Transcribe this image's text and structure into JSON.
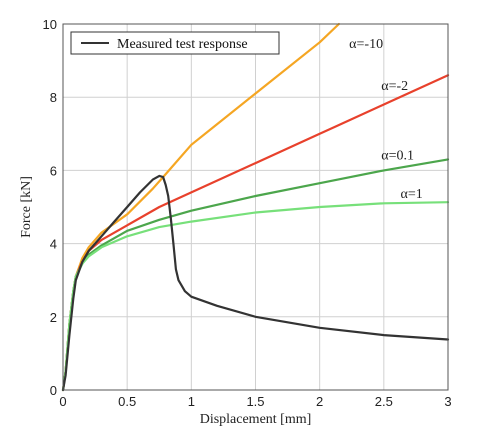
{
  "chart_data": {
    "type": "line",
    "title": "",
    "xlabel": "Displacement  [mm]",
    "ylabel": "Force [kN]",
    "xlim": [
      0,
      3
    ],
    "ylim": [
      0,
      10
    ],
    "x_ticks": [
      0,
      0.5,
      1,
      1.5,
      2,
      2.5,
      3
    ],
    "x_tick_labels": [
      "0",
      "0.5",
      "1",
      "1.5",
      "2",
      "2.5",
      "3"
    ],
    "y_ticks": [
      0,
      2,
      4,
      6,
      8,
      10
    ],
    "y_tick_labels": [
      "0",
      "2",
      "4",
      "6",
      "8",
      "10"
    ],
    "grid": true,
    "legend_position": "top-left",
    "series": [
      {
        "name": "Measured test response",
        "in_legend": true,
        "color": "#333333",
        "points": [
          [
            0,
            0
          ],
          [
            0.02,
            0.4
          ],
          [
            0.05,
            1.5
          ],
          [
            0.08,
            2.5
          ],
          [
            0.1,
            3.0
          ],
          [
            0.15,
            3.5
          ],
          [
            0.2,
            3.8
          ],
          [
            0.3,
            4.2
          ],
          [
            0.4,
            4.6
          ],
          [
            0.5,
            5.0
          ],
          [
            0.6,
            5.4
          ],
          [
            0.7,
            5.75
          ],
          [
            0.75,
            5.85
          ],
          [
            0.78,
            5.82
          ],
          [
            0.8,
            5.6
          ],
          [
            0.82,
            5.3
          ],
          [
            0.84,
            4.7
          ],
          [
            0.86,
            4.0
          ],
          [
            0.88,
            3.3
          ],
          [
            0.9,
            3.0
          ],
          [
            0.95,
            2.7
          ],
          [
            1.0,
            2.55
          ],
          [
            1.2,
            2.3
          ],
          [
            1.5,
            2.0
          ],
          [
            2.0,
            1.7
          ],
          [
            2.5,
            1.5
          ],
          [
            3.0,
            1.38
          ]
        ]
      },
      {
        "name": "α=-10",
        "in_legend": false,
        "color": "#f5a623",
        "points": [
          [
            0,
            0
          ],
          [
            0.02,
            0.5
          ],
          [
            0.05,
            1.8
          ],
          [
            0.08,
            2.7
          ],
          [
            0.1,
            3.1
          ],
          [
            0.15,
            3.6
          ],
          [
            0.2,
            3.9
          ],
          [
            0.3,
            4.3
          ],
          [
            0.5,
            4.8
          ],
          [
            0.7,
            5.5
          ],
          [
            0.8,
            5.9
          ],
          [
            1.0,
            6.7
          ],
          [
            1.5,
            8.1
          ],
          [
            2.0,
            9.5
          ],
          [
            2.15,
            10.0
          ]
        ]
      },
      {
        "name": "α=-2",
        "in_legend": false,
        "color": "#e8412c",
        "points": [
          [
            0,
            0
          ],
          [
            0.02,
            0.5
          ],
          [
            0.05,
            1.8
          ],
          [
            0.08,
            2.7
          ],
          [
            0.1,
            3.1
          ],
          [
            0.15,
            3.5
          ],
          [
            0.2,
            3.8
          ],
          [
            0.3,
            4.1
          ],
          [
            0.5,
            4.5
          ],
          [
            0.75,
            5.0
          ],
          [
            1.0,
            5.4
          ],
          [
            1.5,
            6.2
          ],
          [
            2.0,
            7.0
          ],
          [
            2.5,
            7.8
          ],
          [
            3.0,
            8.6
          ]
        ]
      },
      {
        "name": "α=0.1",
        "in_legend": false,
        "color": "#4ca64c",
        "points": [
          [
            0,
            0
          ],
          [
            0.02,
            0.5
          ],
          [
            0.05,
            1.8
          ],
          [
            0.08,
            2.7
          ],
          [
            0.1,
            3.1
          ],
          [
            0.15,
            3.45
          ],
          [
            0.2,
            3.7
          ],
          [
            0.3,
            3.95
          ],
          [
            0.5,
            4.35
          ],
          [
            0.75,
            4.65
          ],
          [
            1.0,
            4.9
          ],
          [
            1.5,
            5.3
          ],
          [
            2.0,
            5.65
          ],
          [
            2.5,
            6.0
          ],
          [
            3.0,
            6.3
          ]
        ]
      },
      {
        "name": "α=1",
        "in_legend": false,
        "color": "#77e07a",
        "points": [
          [
            0,
            0
          ],
          [
            0.02,
            0.5
          ],
          [
            0.05,
            1.8
          ],
          [
            0.08,
            2.7
          ],
          [
            0.1,
            3.1
          ],
          [
            0.15,
            3.45
          ],
          [
            0.2,
            3.65
          ],
          [
            0.3,
            3.9
          ],
          [
            0.5,
            4.2
          ],
          [
            0.75,
            4.45
          ],
          [
            1.0,
            4.6
          ],
          [
            1.5,
            4.85
          ],
          [
            2.0,
            5.0
          ],
          [
            2.5,
            5.1
          ],
          [
            3.0,
            5.13
          ]
        ]
      }
    ],
    "annotations": [
      {
        "text": "α=-10",
        "x": 2.23,
        "y": 9.35
      },
      {
        "text": "α=-2",
        "x": 2.48,
        "y": 8.2
      },
      {
        "text": "α=0.1",
        "x": 2.48,
        "y": 6.3
      },
      {
        "text": "α=1",
        "x": 2.63,
        "y": 5.25
      }
    ]
  }
}
